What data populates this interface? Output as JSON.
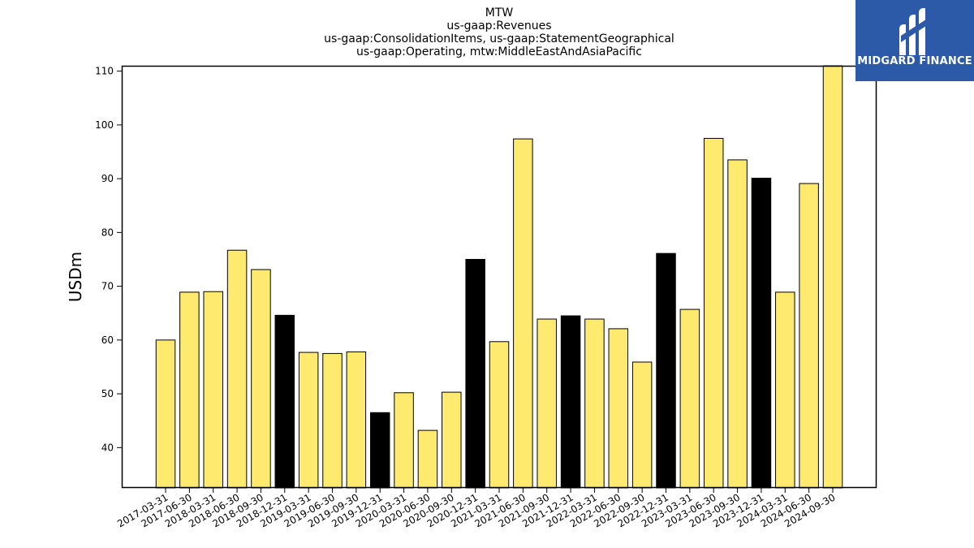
{
  "chart_data": {
    "type": "bar",
    "title_lines": [
      "MTW",
      "us-gaap:Revenues",
      "us-gaap:ConsolidationItems, us-gaap:StatementGeographical",
      "us-gaap:Operating, mtw:MiddleEastAndAsiaPacific"
    ],
    "ylabel": "USDm",
    "ylim": [
      32.5,
      111
    ],
    "yticks": [
      40,
      50,
      60,
      70,
      80,
      90,
      100,
      110
    ],
    "categories": [
      "2017-03-31",
      "2017-06-30",
      "2018-03-31",
      "2018-06-30",
      "2018-09-30",
      "2018-12-31",
      "2019-03-31",
      "2019-06-30",
      "2019-09-30",
      "2019-12-31",
      "2020-03-31",
      "2020-06-30",
      "2020-09-30",
      "2020-12-31",
      "2021-03-31",
      "2021-06-30",
      "2021-09-30",
      "2021-12-31",
      "2022-03-31",
      "2022-06-30",
      "2022-09-30",
      "2022-12-31",
      "2023-03-31",
      "2023-06-30",
      "2023-09-30",
      "2023-12-31",
      "2024-03-31",
      "2024-06-30",
      "2024-09-30"
    ],
    "values": [
      60.0,
      68.9,
      69.0,
      76.7,
      73.1,
      64.6,
      57.7,
      57.5,
      57.8,
      46.5,
      50.2,
      43.2,
      50.3,
      75.0,
      59.7,
      97.4,
      63.9,
      64.5,
      63.9,
      62.1,
      55.9,
      76.1,
      65.7,
      97.5,
      93.5,
      90.1,
      68.9,
      89.1,
      111.0
    ],
    "highlight": [
      false,
      false,
      false,
      false,
      false,
      true,
      false,
      false,
      false,
      true,
      false,
      false,
      false,
      true,
      false,
      false,
      false,
      true,
      false,
      false,
      false,
      true,
      false,
      false,
      false,
      true,
      false,
      false,
      false
    ],
    "colors": {
      "bar": "#ffea70",
      "highlight_bar": "#000000",
      "edge": "#000000"
    },
    "grid": false
  },
  "logo": {
    "text": "MIDGARD FINANCE",
    "background": "#2d5aa8"
  }
}
